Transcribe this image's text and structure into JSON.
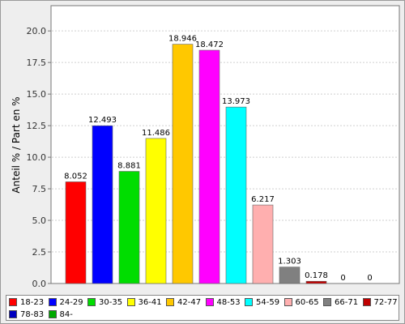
{
  "chart_data": {
    "type": "bar",
    "title": "",
    "xlabel": "",
    "ylabel": "Anteil % / Part en %",
    "ylim": [
      0,
      22
    ],
    "yticks": [
      "0.0",
      "2.5",
      "5.0",
      "7.5",
      "10.0",
      "12.5",
      "15.0",
      "17.5",
      "20.0"
    ],
    "grid": true,
    "legend_position": "bottom",
    "categories": [
      "18-23",
      "24-29",
      "30-35",
      "36-41",
      "42-47",
      "48-53",
      "54-59",
      "60-65",
      "66-71",
      "72-77",
      "78-83",
      "84-"
    ],
    "values": [
      8.052,
      12.493,
      8.881,
      11.486,
      18.946,
      18.472,
      13.973,
      6.217,
      1.303,
      0.178,
      0,
      0
    ],
    "value_labels": [
      "8.052",
      "12.493",
      "8.881",
      "11.486",
      "18.946",
      "18.472",
      "13.973",
      "6.217",
      "1.303",
      "0.178",
      "0",
      "0"
    ],
    "colors": [
      "#ff0000",
      "#0000ff",
      "#00dd00",
      "#ffff00",
      "#ffc800",
      "#ff00ff",
      "#00ffff",
      "#ffafaf",
      "#808080",
      "#c00000",
      "#0000c0",
      "#00aa00"
    ]
  }
}
